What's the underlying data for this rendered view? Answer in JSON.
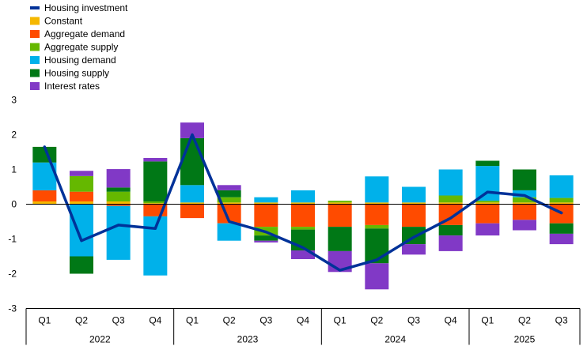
{
  "chart_data": {
    "type": "bar",
    "stacked": true,
    "categories": [
      "Q1",
      "Q2",
      "Q3",
      "Q4",
      "Q1",
      "Q2",
      "Q3",
      "Q4",
      "Q1",
      "Q2",
      "Q3",
      "Q4",
      "Q1",
      "Q2",
      "Q3"
    ],
    "year_groups": [
      {
        "label": "2022",
        "count": 4
      },
      {
        "label": "2023",
        "count": 4
      },
      {
        "label": "2024",
        "count": 4
      },
      {
        "label": "2025",
        "count": 3
      }
    ],
    "ylim": [
      -3,
      3
    ],
    "yticks": [
      3,
      2,
      1,
      0,
      -1,
      -2,
      -3
    ],
    "grid": false,
    "legend_position": "top-left",
    "series": [
      {
        "name": "Constant",
        "kind": "bar",
        "color": "#f5b800",
        "values": [
          0.08,
          0.08,
          0.08,
          0.03,
          0.05,
          0.05,
          0.05,
          0.05,
          0.05,
          0.05,
          0.05,
          0.05,
          0.05,
          0.05,
          0.05
        ]
      },
      {
        "name": "Aggregate demand",
        "kind": "bar",
        "color": "#ff4b00",
        "values": [
          0.32,
          0.28,
          -0.05,
          -0.35,
          -0.4,
          -0.55,
          -0.65,
          -0.65,
          -0.65,
          -0.6,
          -0.65,
          -0.6,
          -0.55,
          -0.45,
          -0.55
        ]
      },
      {
        "name": "Aggregate supply",
        "kind": "bar",
        "color": "#65b800",
        "values": [
          0.0,
          0.45,
          0.28,
          0.05,
          0.0,
          0.15,
          -0.25,
          -0.08,
          0.05,
          -0.1,
          0.0,
          0.2,
          0.05,
          0.15,
          0.13
        ]
      },
      {
        "name": "Housing demand",
        "kind": "bar",
        "color": "#00b1ea",
        "values": [
          0.8,
          -1.5,
          -1.55,
          -1.7,
          0.5,
          -0.5,
          0.15,
          0.35,
          0.0,
          0.75,
          0.45,
          0.75,
          1.0,
          0.2,
          0.65
        ]
      },
      {
        "name": "Housing supply",
        "kind": "bar",
        "color": "#007816",
        "values": [
          0.45,
          -0.5,
          0.12,
          1.15,
          1.35,
          0.2,
          -0.15,
          -0.6,
          -0.7,
          -1.0,
          -0.5,
          -0.3,
          0.15,
          0.6,
          -0.3
        ]
      },
      {
        "name": "Interest rates",
        "kind": "bar",
        "color": "#8139c6",
        "values": [
          0.0,
          0.15,
          0.53,
          0.1,
          0.45,
          0.15,
          -0.05,
          -0.25,
          -0.6,
          -0.75,
          -0.3,
          -0.45,
          -0.35,
          -0.3,
          -0.3
        ]
      },
      {
        "name": "Housing investment",
        "kind": "line",
        "color": "#003299",
        "values": [
          1.65,
          -1.05,
          -0.6,
          -0.7,
          2.0,
          -0.5,
          -0.8,
          -1.25,
          -1.9,
          -1.6,
          -0.95,
          -0.4,
          0.35,
          0.25,
          -0.25
        ]
      }
    ]
  }
}
